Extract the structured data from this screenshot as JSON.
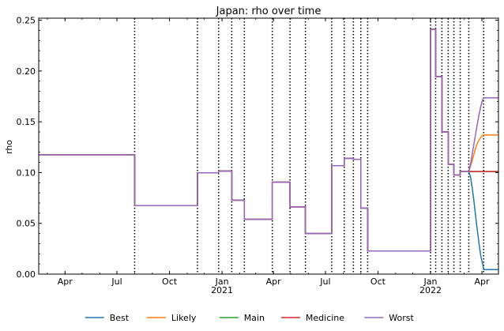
{
  "chart_data": {
    "type": "line",
    "title": "Japan: rho over time",
    "xlabel": "",
    "ylabel": "rho",
    "x_axis": {
      "kind": "date",
      "range": [
        "2020-02-15",
        "2022-04-30"
      ],
      "ticks": [
        {
          "date": "2020-04-01",
          "label": "Apr",
          "sub": ""
        },
        {
          "date": "2020-07-01",
          "label": "Jul",
          "sub": ""
        },
        {
          "date": "2020-10-01",
          "label": "Oct",
          "sub": ""
        },
        {
          "date": "2021-01-01",
          "label": "Jan",
          "sub": "2021"
        },
        {
          "date": "2021-04-01",
          "label": "Apr",
          "sub": ""
        },
        {
          "date": "2021-07-01",
          "label": "Jul",
          "sub": ""
        },
        {
          "date": "2021-10-01",
          "label": "Oct",
          "sub": ""
        },
        {
          "date": "2022-01-01",
          "label": "Jan",
          "sub": "2022"
        },
        {
          "date": "2022-04-01",
          "label": "Apr",
          "sub": ""
        }
      ]
    },
    "y_axis": {
      "range": [
        0,
        0.252
      ],
      "ticks": [
        0.0,
        0.05,
        0.1,
        0.15,
        0.2,
        0.25
      ],
      "tick_labels": [
        "0.00",
        "0.05",
        "0.10",
        "0.15",
        "0.20",
        "0.25"
      ]
    },
    "grid": false,
    "legend_placement": "bottom-center",
    "change_dates": [
      "2020-08-01",
      "2020-11-19",
      "2020-12-26",
      "2021-01-18",
      "2021-02-09",
      "2021-03-30",
      "2021-04-30",
      "2021-05-27",
      "2021-07-12",
      "2021-08-03",
      "2021-08-19",
      "2021-09-01",
      "2021-09-13",
      "2022-01-01",
      "2022-01-10",
      "2022-01-21",
      "2022-02-01",
      "2022-02-11",
      "2022-02-22",
      "2022-03-09",
      "2022-04-04"
    ],
    "common_path": [
      [
        "2020-02-15",
        0.1175
      ],
      [
        "2020-08-01",
        0.1175
      ],
      [
        "2020-08-01",
        0.0675
      ],
      [
        "2020-11-19",
        0.0675
      ],
      [
        "2020-11-19",
        0.0998
      ],
      [
        "2020-12-26",
        0.0998
      ],
      [
        "2020-12-26",
        0.1015
      ],
      [
        "2021-01-18",
        0.1015
      ],
      [
        "2021-01-18",
        0.0728
      ],
      [
        "2021-02-09",
        0.0728
      ],
      [
        "2021-02-09",
        0.054
      ],
      [
        "2021-03-30",
        0.054
      ],
      [
        "2021-03-30",
        0.0905
      ],
      [
        "2021-04-30",
        0.0905
      ],
      [
        "2021-04-30",
        0.0662
      ],
      [
        "2021-05-27",
        0.0662
      ],
      [
        "2021-05-27",
        0.04
      ],
      [
        "2021-07-12",
        0.04
      ],
      [
        "2021-07-12",
        0.1068
      ],
      [
        "2021-08-03",
        0.1068
      ],
      [
        "2021-08-03",
        0.114
      ],
      [
        "2021-08-19",
        0.114
      ],
      [
        "2021-08-19",
        0.113
      ],
      [
        "2021-09-01",
        0.113
      ],
      [
        "2021-09-01",
        0.065
      ],
      [
        "2021-09-13",
        0.065
      ],
      [
        "2021-09-13",
        0.0228
      ],
      [
        "2022-01-01",
        0.0228
      ],
      [
        "2022-01-01",
        0.241
      ],
      [
        "2022-01-10",
        0.241
      ],
      [
        "2022-01-10",
        0.1945
      ],
      [
        "2022-01-21",
        0.1945
      ],
      [
        "2022-01-21",
        0.14
      ],
      [
        "2022-02-01",
        0.14
      ],
      [
        "2022-02-01",
        0.108
      ],
      [
        "2022-02-11",
        0.108
      ],
      [
        "2022-02-11",
        0.0975
      ],
      [
        "2022-02-22",
        0.0975
      ],
      [
        "2022-02-22",
        0.101
      ],
      [
        "2022-03-09",
        0.101
      ]
    ],
    "series": [
      {
        "name": "Best",
        "color": "#1f77b4",
        "tail": [
          [
            "2022-03-09",
            0.101
          ],
          [
            "2022-03-12",
            0.096
          ],
          [
            "2022-03-15",
            0.085
          ],
          [
            "2022-03-18",
            0.072
          ],
          [
            "2022-03-21",
            0.057
          ],
          [
            "2022-03-24",
            0.043
          ],
          [
            "2022-03-27",
            0.03
          ],
          [
            "2022-03-30",
            0.018
          ],
          [
            "2022-04-03",
            0.008
          ],
          [
            "2022-04-04",
            0.0045
          ],
          [
            "2022-04-30",
            0.0045
          ]
        ]
      },
      {
        "name": "Likely",
        "color": "#ff7f0e",
        "tail": [
          [
            "2022-03-09",
            0.101
          ],
          [
            "2022-03-12",
            0.106
          ],
          [
            "2022-03-15",
            0.112
          ],
          [
            "2022-03-18",
            0.118
          ],
          [
            "2022-03-21",
            0.124
          ],
          [
            "2022-03-24",
            0.129
          ],
          [
            "2022-03-28",
            0.133
          ],
          [
            "2022-04-01",
            0.136
          ],
          [
            "2022-04-04",
            0.137
          ],
          [
            "2022-04-30",
            0.137
          ]
        ]
      },
      {
        "name": "Main",
        "color": "#2ca02c",
        "tail": [
          [
            "2022-03-09",
            0.101
          ],
          [
            "2022-04-30",
            0.101
          ]
        ]
      },
      {
        "name": "Medicine",
        "color": "#d62728",
        "tail": [
          [
            "2022-03-09",
            0.101
          ],
          [
            "2022-04-30",
            0.101
          ]
        ]
      },
      {
        "name": "Worst",
        "color": "#9467bd",
        "tail": [
          [
            "2022-03-09",
            0.101
          ],
          [
            "2022-03-12",
            0.108
          ],
          [
            "2022-03-15",
            0.118
          ],
          [
            "2022-03-18",
            0.128
          ],
          [
            "2022-03-21",
            0.138
          ],
          [
            "2022-03-24",
            0.148
          ],
          [
            "2022-03-27",
            0.157
          ],
          [
            "2022-03-30",
            0.165
          ],
          [
            "2022-04-02",
            0.171
          ],
          [
            "2022-04-04",
            0.1735
          ],
          [
            "2022-04-30",
            0.1735
          ]
        ]
      }
    ]
  }
}
